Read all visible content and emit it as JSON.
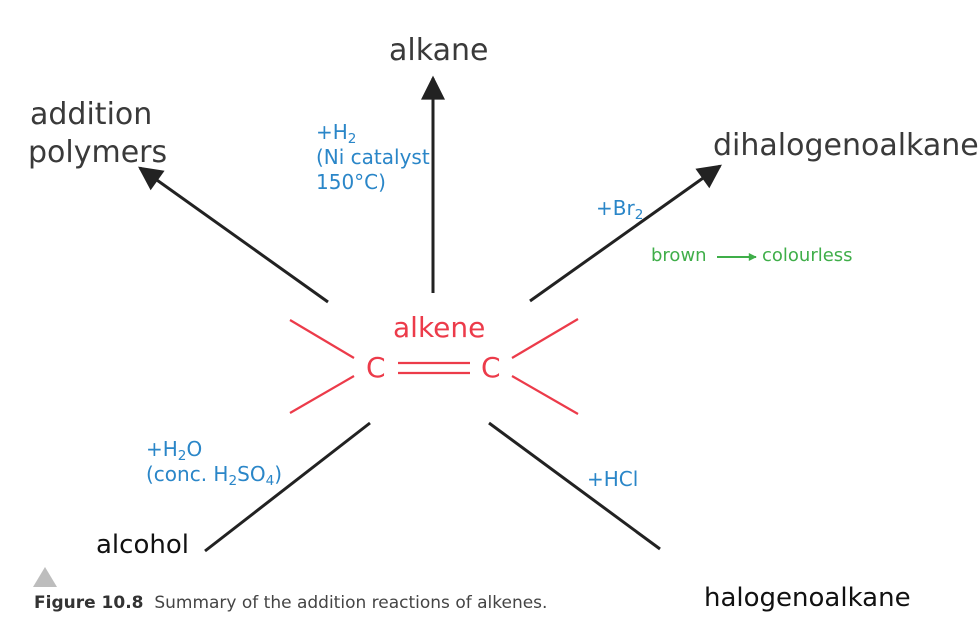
{
  "products": {
    "alkane": "alkane",
    "addition_line1": "addition",
    "addition_line2": "polymers",
    "dihalo": "dihalogenoalkane",
    "alcohol": "alcohol",
    "halo": "halogenoalkane"
  },
  "reagents": {
    "h2_prefix": "+H",
    "h2_sub": "2",
    "ni_line": "(Ni catalyst",
    "temp_line": "150°C)",
    "br_prefix": "+Br",
    "br_sub": "2",
    "h2o_a": "+H",
    "h2o_sub": "2",
    "h2o_b": "O",
    "conc_a": "(conc. H",
    "conc_sub1": "2",
    "conc_b": "SO",
    "conc_sub2": "4",
    "conc_c": ")",
    "hcl": "+HCl"
  },
  "colour_change": {
    "from": "brown",
    "to": "colourless"
  },
  "center": {
    "title": "alkene",
    "atom_left": "C",
    "atom_right": "C"
  },
  "caption": {
    "label": "Figure 10.8",
    "text": "Summary of the addition reactions of alkenes."
  },
  "colors": {
    "arrow": "#222222",
    "alkene": "#ec3b4a",
    "reagent": "#2a86c8",
    "colour_change": "#3fae49",
    "product": "#3a3a3a"
  }
}
